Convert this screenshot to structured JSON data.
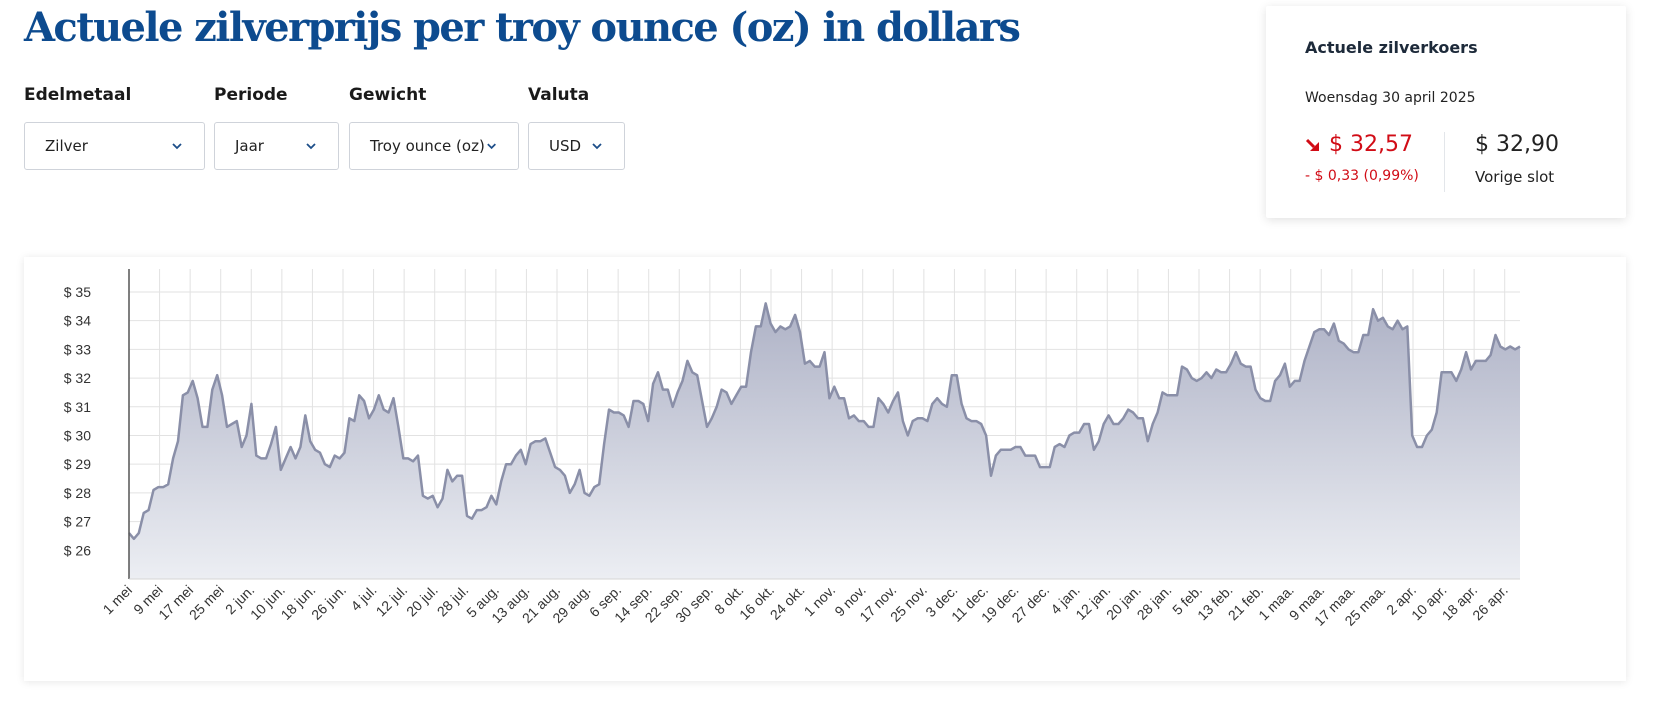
{
  "page": {
    "title": "Actuele zilverprijs per troy ounce (oz) in dollars"
  },
  "filters": [
    {
      "label": "Edelmetaal",
      "value": "Zilver"
    },
    {
      "label": "Periode",
      "value": "Jaar"
    },
    {
      "label": "Gewicht",
      "value": "Troy ounce (oz)"
    },
    {
      "label": "Valuta",
      "value": "USD"
    }
  ],
  "rate_card": {
    "title": "Actuele zilverkoers",
    "date": "Woensdag 30 april 2025",
    "current_price": "$ 32,57",
    "change": "- $ 0,33 (0,99%)",
    "previous_price": "$ 32,90",
    "previous_label": "Vorige slot",
    "trend": "down",
    "trend_color": "#d10c16"
  },
  "colors": {
    "title": "#0d4b8f",
    "series_line": "#8a8fa8",
    "series_fill_top": "#aeb2c6",
    "series_fill_bottom": "#eceef3"
  },
  "chart_data": {
    "type": "area",
    "y_ticks": [
      "$ 26",
      "$ 27",
      "$ 28",
      "$ 29",
      "$ 30",
      "$ 31",
      "$ 32",
      "$ 33",
      "$ 34",
      "$ 35"
    ],
    "ylim": [
      25,
      35.8
    ],
    "x_ticks": [
      "1 mei",
      "9 mei",
      "17 mei",
      "25 mei",
      "2 jun.",
      "10 jun.",
      "18 jun.",
      "26 jun.",
      "4 jul.",
      "12 jul.",
      "20 jul.",
      "28 jul.",
      "5 aug.",
      "13 aug.",
      "21 aug.",
      "29 aug.",
      "6 sep.",
      "14 sep.",
      "22 sep.",
      "30 sep.",
      "8 okt.",
      "16 okt.",
      "24 okt.",
      "1 nov.",
      "9 nov.",
      "17 nov.",
      "25 nov.",
      "3 dec.",
      "11 dec.",
      "19 dec.",
      "27 dec.",
      "4 jan.",
      "12 jan.",
      "20 jan.",
      "28 jan.",
      "5 feb.",
      "13 feb.",
      "21 feb.",
      "1 maa.",
      "9 maa.",
      "17 maa.",
      "25 maa.",
      "2 apr.",
      "10 apr.",
      "18 apr.",
      "26 apr."
    ],
    "grid": true,
    "legend": "none",
    "series": [
      {
        "values": [
          26.6,
          26.4,
          26.6,
          27.3,
          27.4,
          28.1,
          28.2,
          28.2,
          28.3,
          29.2,
          29.8,
          31.4,
          31.5,
          31.9,
          31.3,
          30.3,
          30.3,
          31.6,
          32.1,
          31.4,
          30.3,
          30.4,
          30.5,
          29.6,
          30.0,
          31.1,
          29.3,
          29.2,
          29.2,
          29.7,
          30.3,
          28.8,
          29.2,
          29.6,
          29.2,
          29.6,
          30.7,
          29.8,
          29.5,
          29.4,
          29.0,
          28.9,
          29.3,
          29.2,
          29.4,
          30.6,
          30.5,
          31.4,
          31.2,
          30.6,
          30.9,
          31.4,
          30.9,
          30.8,
          31.3,
          30.3,
          29.2,
          29.2,
          29.1,
          29.3,
          27.9,
          27.8,
          27.9,
          27.5,
          27.8,
          28.8,
          28.4,
          28.6,
          28.6,
          27.2,
          27.1,
          27.4,
          27.4,
          27.5,
          27.9,
          27.6,
          28.4,
          29.0,
          29.0,
          29.3,
          29.5,
          29.0,
          29.7,
          29.8,
          29.8,
          29.9,
          29.4,
          28.9,
          28.8,
          28.6,
          28.0,
          28.3,
          28.8,
          28.0,
          27.9,
          28.2,
          28.3,
          29.7,
          30.9,
          30.8,
          30.8,
          30.7,
          30.3,
          31.2,
          31.2,
          31.1,
          30.5,
          31.8,
          32.2,
          31.6,
          31.6,
          31.0,
          31.5,
          31.9,
          32.6,
          32.2,
          32.1,
          31.2,
          30.3,
          30.6,
          31.0,
          31.6,
          31.5,
          31.1,
          31.4,
          31.7,
          31.7,
          32.9,
          33.8,
          33.8,
          34.6,
          33.9,
          33.6,
          33.8,
          33.7,
          33.8,
          34.2,
          33.6,
          32.5,
          32.6,
          32.4,
          32.4,
          32.9,
          31.3,
          31.7,
          31.3,
          31.3,
          30.6,
          30.7,
          30.5,
          30.5,
          30.3,
          30.3,
          31.3,
          31.1,
          30.8,
          31.2,
          31.5,
          30.5,
          30.0,
          30.5,
          30.6,
          30.6,
          30.5,
          31.1,
          31.3,
          31.1,
          31.0,
          32.1,
          32.1,
          31.1,
          30.6,
          30.5,
          30.5,
          30.4,
          30.0,
          28.6,
          29.3,
          29.5,
          29.5,
          29.5,
          29.6,
          29.6,
          29.3,
          29.3,
          29.3,
          28.9,
          28.9,
          28.9,
          29.6,
          29.7,
          29.6,
          30.0,
          30.1,
          30.1,
          30.4,
          30.4,
          29.5,
          29.8,
          30.4,
          30.7,
          30.4,
          30.4,
          30.6,
          30.9,
          30.8,
          30.6,
          30.6,
          29.8,
          30.4,
          30.8,
          31.5,
          31.4,
          31.4,
          31.4,
          32.4,
          32.3,
          32.0,
          31.9,
          32.0,
          32.2,
          32.0,
          32.3,
          32.2,
          32.2,
          32.5,
          32.9,
          32.5,
          32.4,
          32.4,
          31.6,
          31.3,
          31.2,
          31.2,
          31.9,
          32.1,
          32.5,
          31.7,
          31.9,
          31.9,
          32.6,
          33.1,
          33.6,
          33.7,
          33.7,
          33.5,
          33.9,
          33.3,
          33.2,
          33.0,
          32.9,
          32.9,
          33.5,
          33.5,
          34.4,
          34.0,
          34.1,
          33.8,
          33.7,
          34.0,
          33.7,
          33.8,
          30.0,
          29.6,
          29.6,
          30.0,
          30.2,
          30.8,
          32.2,
          32.2,
          32.2,
          31.9,
          32.3,
          32.9,
          32.3,
          32.6,
          32.6,
          32.6,
          32.8,
          33.5,
          33.1,
          33.0,
          33.1,
          33.0,
          33.1
        ]
      }
    ]
  }
}
